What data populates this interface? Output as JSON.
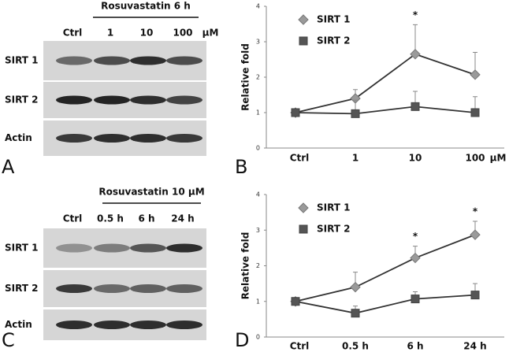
{
  "panels": [
    {
      "letter": "A",
      "treatment": "Rosuvastatin 6 h",
      "lanes": [
        "Ctrl",
        "1",
        "10",
        "100"
      ],
      "unit": "μM",
      "rows": [
        "SIRT 1",
        "SIRT 2",
        "Actin"
      ]
    },
    {
      "letter": "C",
      "treatment": "Rosuvastatin 10 μM",
      "lanes": [
        "Ctrl",
        "0.5 h",
        "6 h",
        "24 h"
      ],
      "rows": [
        "SIRT 1",
        "SIRT 2",
        "Actin"
      ]
    }
  ],
  "chart_data": [
    {
      "type": "line",
      "letter": "B",
      "ylabel": "Relative fold",
      "categories": [
        "Ctrl",
        "1",
        "10",
        "100"
      ],
      "x_unit": "μM",
      "ylim": [
        0,
        4
      ],
      "yticks": [
        0,
        1,
        2,
        3,
        4
      ],
      "series": [
        {
          "name": "SIRT 1",
          "color": "#9a9a9a",
          "marker": "diamond",
          "values": [
            1,
            1.4,
            2.65,
            2.07
          ],
          "errors": [
            0,
            0.25,
            0.83,
            0.63
          ]
        },
        {
          "name": "SIRT 2",
          "color": "#555555",
          "marker": "square",
          "values": [
            1,
            0.97,
            1.17,
            1.0
          ],
          "errors": [
            0,
            0.38,
            0.43,
            0.45
          ]
        }
      ],
      "annotations": [
        {
          "text": "*",
          "series": "SIRT 1",
          "category": "10"
        }
      ]
    },
    {
      "type": "line",
      "letter": "D",
      "ylabel": "Relative fold",
      "categories": [
        "Ctrl",
        "0.5 h",
        "6 h",
        "24 h"
      ],
      "ylim": [
        0,
        4
      ],
      "yticks": [
        0,
        1,
        2,
        3,
        4
      ],
      "series": [
        {
          "name": "SIRT 1",
          "color": "#9a9a9a",
          "marker": "diamond",
          "values": [
            1,
            1.4,
            2.22,
            2.87
          ],
          "errors": [
            0,
            0.42,
            0.33,
            0.38
          ]
        },
        {
          "name": "SIRT 2",
          "color": "#555555",
          "marker": "square",
          "values": [
            1,
            0.67,
            1.07,
            1.18
          ],
          "errors": [
            0,
            0.2,
            0.2,
            0.32
          ]
        }
      ],
      "annotations": [
        {
          "text": "*",
          "series": "SIRT 1",
          "category": "6 h"
        },
        {
          "text": "*",
          "series": "SIRT 1",
          "category": "24 h"
        }
      ]
    }
  ]
}
